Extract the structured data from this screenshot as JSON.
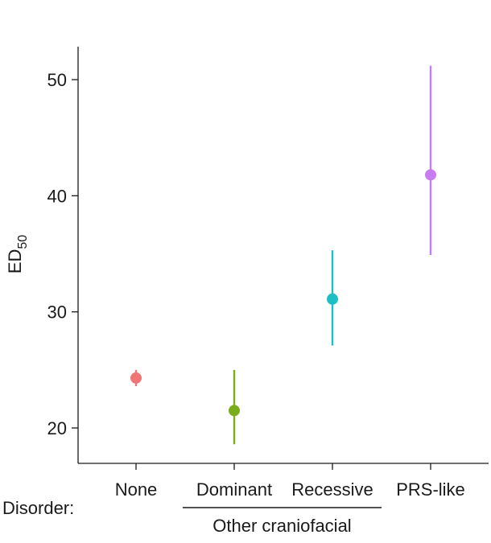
{
  "chart_data": {
    "type": "scatter",
    "subtype": "point-with-error-bars",
    "title": "",
    "ylabel": "ED",
    "ylabel_subscript": "50",
    "xlabel": "Disorder:",
    "group_label": "Other craniofacial",
    "grouped_categories": [
      "Dominant",
      "Recessive"
    ],
    "ylim": [
      16.5,
      53
    ],
    "yticks": [
      20,
      30,
      40,
      50
    ],
    "grid": false,
    "legend": "none",
    "categories": [
      "None",
      "Dominant",
      "Recessive",
      "PRS-like"
    ],
    "points": [
      {
        "category": "None",
        "value": 24.3,
        "lower": 23.6,
        "upper": 25.0,
        "color": "#f07575"
      },
      {
        "category": "Dominant",
        "value": 21.5,
        "lower": 18.6,
        "upper": 25.0,
        "color": "#7aad1a"
      },
      {
        "category": "Recessive",
        "value": 31.1,
        "lower": 27.1,
        "upper": 35.3,
        "color": "#1cbfc4"
      },
      {
        "category": "PRS-like",
        "value": 41.8,
        "lower": 34.9,
        "upper": 51.2,
        "color": "#c77cf2"
      }
    ]
  }
}
